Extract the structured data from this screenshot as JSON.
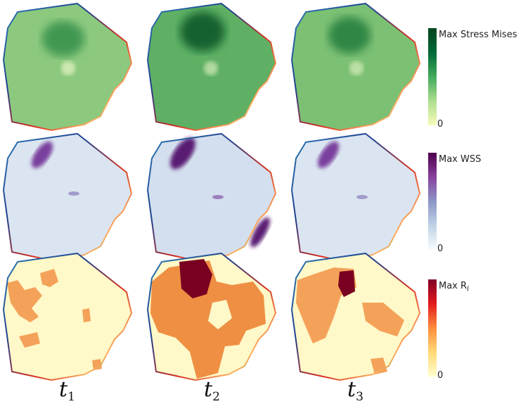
{
  "columns": [
    {
      "label": "t",
      "sub": "1"
    },
    {
      "label": "t",
      "sub": "2"
    },
    {
      "label": "t",
      "sub": "3"
    }
  ],
  "rows": [
    {
      "name": "stress",
      "colorbar": {
        "max_label": "Max Stress Mises",
        "min_label": "0",
        "colors": [
          "#f7fcb9",
          "#addd8e",
          "#41ab5d",
          "#006837",
          "#00441b"
        ]
      },
      "panel_fills": [
        "#8cc97f",
        "#5fb064",
        "#7cc074"
      ],
      "hot_colors": [
        "#2e8b46",
        "#0b5a2a",
        "#237d3e"
      ]
    },
    {
      "name": "wss",
      "colorbar": {
        "max_label": "Max WSS",
        "min_label": "0",
        "colors": [
          "#f7fcfd",
          "#bfd3e6",
          "#8c96c6",
          "#88419d",
          "#4d004b"
        ]
      },
      "panel_fills": [
        "#dbe5f1",
        "#d3dfee",
        "#dbe5f1"
      ],
      "hot_colors": [
        "#7a3f9e",
        "#5a1a73",
        "#7a3f9e"
      ]
    },
    {
      "name": "ri",
      "colorbar": {
        "max_label": "Max R",
        "max_label_sub": "i",
        "min_label": "0",
        "colors": [
          "#ffffcc",
          "#fed976",
          "#fd8d3c",
          "#e31a1c",
          "#800026"
        ]
      },
      "panel_fills": [
        "#fff8c8",
        "#fff8c8",
        "#fff8c8"
      ],
      "hot_colors": [
        "#f4a259",
        "#ef8f43",
        "#f4a259"
      ],
      "core_color": "#7a0021"
    }
  ],
  "boundary_colors": [
    "#2c7bb6",
    "#1f3f8c",
    "#5e3c99",
    "#7b3294",
    "#d7301f",
    "#e6550d",
    "#fdae61",
    "#a6d96a",
    "#1a9641"
  ]
}
